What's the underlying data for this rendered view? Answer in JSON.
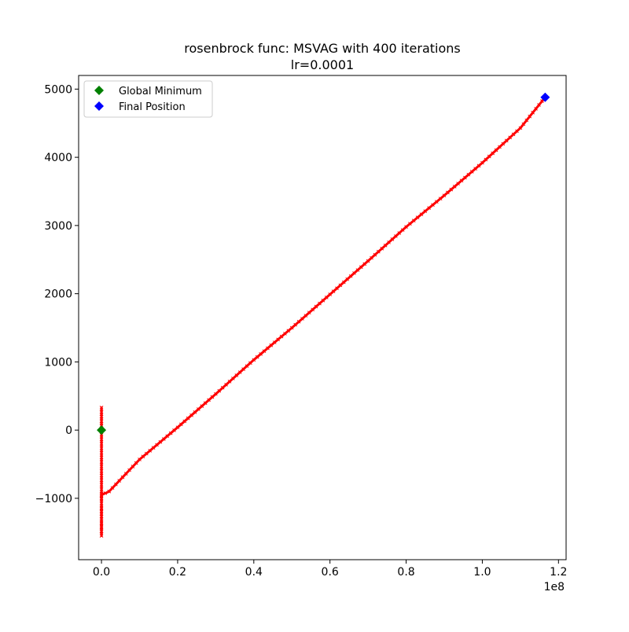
{
  "chart_data": {
    "type": "line",
    "title_line1": "rosenbrock func: MSVAG with 400 iterations",
    "title_line2": "lr=0.0001",
    "xlabel": "",
    "ylabel": "",
    "x_offset_label": "1e8",
    "x_scale": 100000000,
    "xlim": [
      -6000000,
      122000000
    ],
    "ylim": [
      -1900,
      5200
    ],
    "x_ticks": [
      0,
      20000000,
      40000000,
      60000000,
      80000000,
      100000000,
      120000000
    ],
    "x_tick_labels": [
      "0.0",
      "0.2",
      "0.4",
      "0.6",
      "0.8",
      "1.0",
      "1.2"
    ],
    "y_ticks": [
      -1000,
      0,
      1000,
      2000,
      3000,
      4000,
      5000
    ],
    "y_tick_labels": [
      "−1000",
      "0",
      "1000",
      "2000",
      "3000",
      "4000",
      "5000"
    ],
    "grid": false,
    "legend_position": "top-left",
    "series": [
      {
        "name": "",
        "color": "#ff0000",
        "marker": "x",
        "points": [
          [
            0,
            0
          ],
          [
            0,
            330
          ],
          [
            0,
            -200
          ],
          [
            0,
            -600
          ],
          [
            0,
            -1000
          ],
          [
            0,
            -1300
          ],
          [
            0,
            -1550
          ],
          [
            0,
            -1200
          ],
          [
            0,
            -950
          ],
          [
            2000000,
            -900
          ],
          [
            10000000,
            -430
          ],
          [
            20000000,
            40
          ],
          [
            30000000,
            530
          ],
          [
            40000000,
            1030
          ],
          [
            50000000,
            1500
          ],
          [
            60000000,
            1990
          ],
          [
            70000000,
            2480
          ],
          [
            80000000,
            2980
          ],
          [
            90000000,
            3440
          ],
          [
            100000000,
            3920
          ],
          [
            110000000,
            4430
          ],
          [
            116500000,
            4880
          ]
        ]
      }
    ],
    "markers": [
      {
        "name": "Global Minimum",
        "x": 0,
        "y": 0,
        "color": "#008000",
        "shape": "diamond"
      },
      {
        "name": "Final Position",
        "x": 116500000,
        "y": 4880,
        "color": "#0000ff",
        "shape": "diamond"
      }
    ]
  }
}
